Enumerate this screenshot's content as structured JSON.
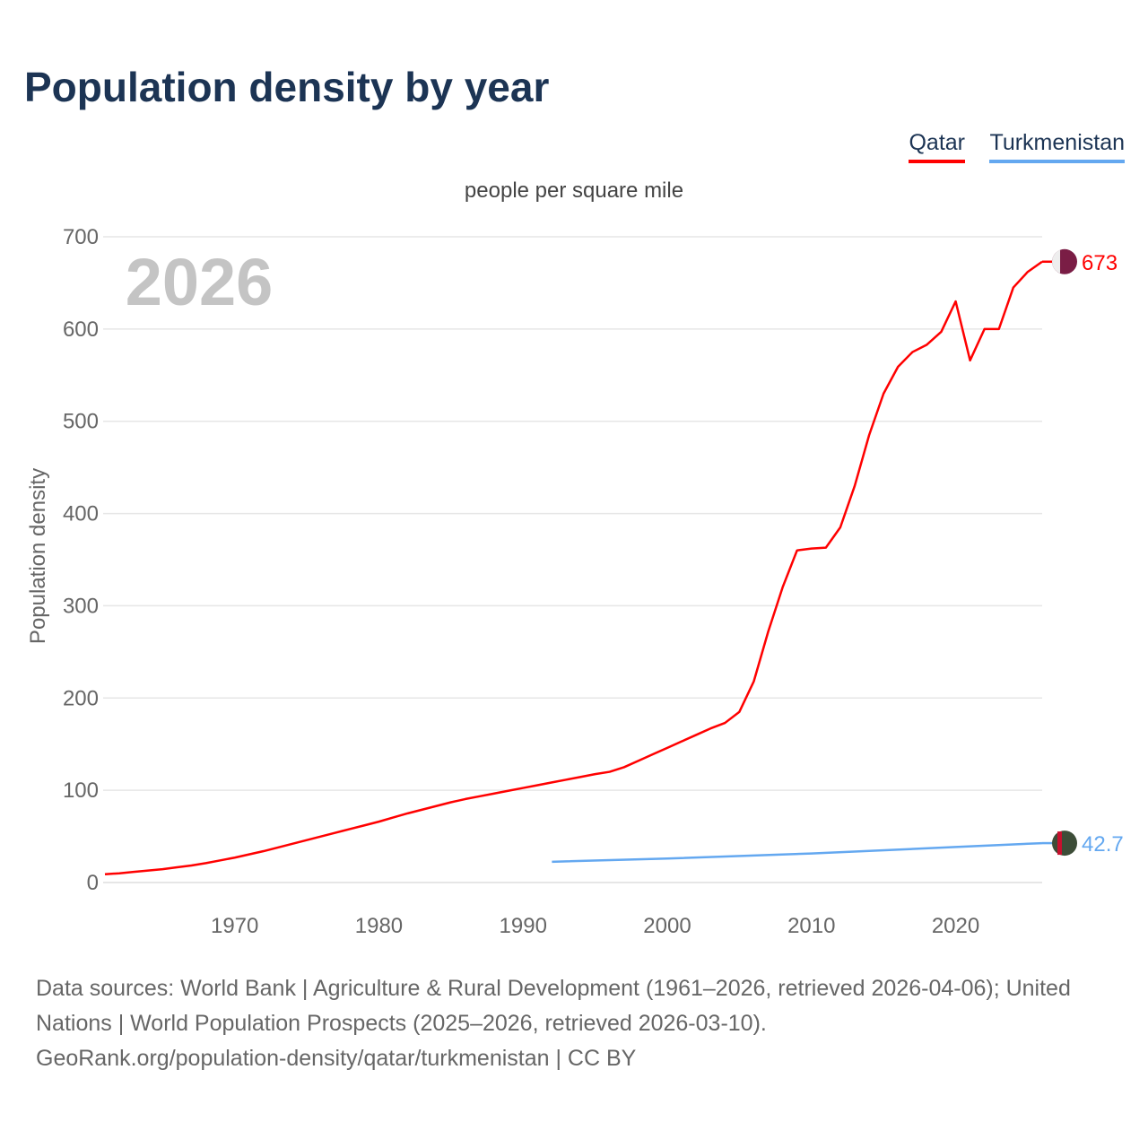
{
  "title": "Population density by year",
  "legend": [
    {
      "label": "Qatar",
      "color": "#ff0000"
    },
    {
      "label": "Turkmenistan",
      "color": "#64a8f0"
    }
  ],
  "chart_data": {
    "type": "line",
    "title": "Population density by year",
    "subtitle": "people per square mile",
    "ylabel": "Population density",
    "xlabel": "",
    "year_label": "2026",
    "xlim": [
      1961,
      2026
    ],
    "ylim": [
      0,
      700
    ],
    "yticks": [
      "0",
      "100",
      "200",
      "300",
      "400",
      "500",
      "600",
      "700"
    ],
    "xticks": [
      "1970",
      "1980",
      "1990",
      "2000",
      "2010",
      "2020"
    ],
    "grid": true,
    "series": [
      {
        "name": "Qatar",
        "color": "#ff0000",
        "end_label": "673",
        "x": [
          1961,
          1962,
          1963,
          1964,
          1965,
          1966,
          1967,
          1968,
          1969,
          1970,
          1971,
          1972,
          1973,
          1974,
          1975,
          1976,
          1977,
          1978,
          1979,
          1980,
          1981,
          1982,
          1983,
          1984,
          1985,
          1986,
          1987,
          1988,
          1989,
          1990,
          1991,
          1992,
          1993,
          1994,
          1995,
          1996,
          1997,
          1998,
          1999,
          2000,
          2001,
          2002,
          2003,
          2004,
          2005,
          2006,
          2007,
          2008,
          2009,
          2010,
          2011,
          2012,
          2013,
          2014,
          2015,
          2016,
          2017,
          2018,
          2019,
          2020,
          2021,
          2022,
          2023,
          2024,
          2025,
          2026
        ],
        "values": [
          9,
          10,
          11.5,
          13,
          14.5,
          16.5,
          18.5,
          21,
          24,
          27,
          30.5,
          34,
          38,
          42,
          46,
          50,
          54,
          58,
          62,
          66,
          70.5,
          75,
          79,
          83,
          87,
          90.5,
          93.5,
          96.5,
          99.5,
          102.5,
          105.5,
          108.5,
          111.5,
          114.5,
          117.5,
          120,
          125,
          132,
          139,
          146,
          153,
          160,
          167,
          173,
          185,
          218,
          272,
          320,
          360,
          362,
          363,
          385,
          430,
          485,
          530,
          559,
          575,
          583,
          597,
          630,
          566,
          600,
          600,
          645,
          662,
          673
        ]
      },
      {
        "name": "Turkmenistan",
        "color": "#64a8f0",
        "end_label": "42.7",
        "x": [
          1992,
          2000,
          2010,
          2020,
          2026
        ],
        "values": [
          22.5,
          26,
          31.5,
          38.5,
          42.7
        ]
      }
    ]
  },
  "footer": {
    "sources": "Data sources: World Bank | Agriculture & Rural Development (1961–2026, retrieved 2026-04-06); United Nations | World Population Prospects (2025–2026, retrieved 2026-03-10).",
    "link": "GeoRank.org/population-density/qatar/turkmenistan | CC BY"
  }
}
